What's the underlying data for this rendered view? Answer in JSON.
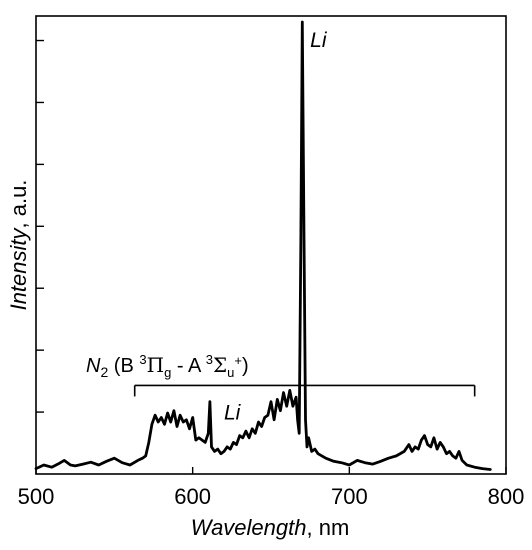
{
  "chart_data": {
    "type": "line",
    "xlabel": "Wavelength",
    "xlabel_unit": ", nm",
    "ylabel": "Intensity",
    "ylabel_unit": ", a.u.",
    "xlim": [
      500,
      800
    ],
    "ylim": [
      0,
      1.0
    ],
    "x_ticks": [
      500,
      600,
      700,
      800
    ],
    "x_tick_labels": [
      "500",
      "600",
      "700",
      "800"
    ],
    "y_ticks": [
      0.137,
      0.274,
      0.411,
      0.548,
      0.685,
      0.822,
      0.959
    ],
    "grid": false,
    "legend": "none",
    "series": [
      {
        "x": [
          500,
          505,
          510,
          515,
          518,
          522,
          525,
          530,
          535,
          540,
          545,
          550,
          555,
          560,
          565,
          568,
          570,
          572,
          574,
          576,
          578,
          580,
          582,
          584,
          586,
          588,
          590,
          592,
          594,
          596,
          598,
          600,
          602,
          604,
          606,
          608,
          610,
          611,
          612,
          614,
          616,
          618,
          620,
          622,
          624,
          626,
          628,
          630,
          632,
          634,
          636,
          638,
          640,
          642,
          644,
          646,
          648,
          650,
          652,
          654,
          656,
          658,
          660,
          662,
          664,
          666,
          667,
          668,
          669,
          670,
          671,
          672,
          673,
          674,
          676,
          678,
          680,
          685,
          690,
          695,
          700,
          705,
          710,
          715,
          720,
          725,
          730,
          735,
          738,
          740,
          742,
          744,
          746,
          748,
          750,
          752,
          754,
          756,
          758,
          760,
          762,
          764,
          766,
          768,
          770,
          772,
          775,
          780,
          785,
          790
        ],
        "y": [
          0.012,
          0.02,
          0.015,
          0.024,
          0.03,
          0.02,
          0.018,
          0.022,
          0.026,
          0.02,
          0.028,
          0.035,
          0.025,
          0.02,
          0.03,
          0.035,
          0.04,
          0.07,
          0.11,
          0.13,
          0.115,
          0.125,
          0.11,
          0.135,
          0.115,
          0.14,
          0.105,
          0.13,
          0.115,
          0.12,
          0.1,
          0.125,
          0.075,
          0.08,
          0.075,
          0.07,
          0.09,
          0.16,
          0.06,
          0.05,
          0.055,
          0.045,
          0.05,
          0.06,
          0.055,
          0.07,
          0.065,
          0.085,
          0.08,
          0.095,
          0.08,
          0.1,
          0.09,
          0.115,
          0.105,
          0.125,
          0.13,
          0.16,
          0.12,
          0.165,
          0.14,
          0.18,
          0.15,
          0.185,
          0.15,
          0.17,
          0.12,
          0.09,
          0.5,
          1.0,
          0.55,
          0.12,
          0.06,
          0.08,
          0.05,
          0.055,
          0.045,
          0.035,
          0.028,
          0.025,
          0.02,
          0.03,
          0.025,
          0.022,
          0.028,
          0.035,
          0.04,
          0.05,
          0.065,
          0.05,
          0.06,
          0.055,
          0.075,
          0.085,
          0.065,
          0.06,
          0.08,
          0.055,
          0.07,
          0.06,
          0.045,
          0.05,
          0.04,
          0.035,
          0.05,
          0.03,
          0.02,
          0.015,
          0.012,
          0.01
        ]
      }
    ],
    "annotations": [
      {
        "text": "Li",
        "x": 675,
        "y": 0.985
      },
      {
        "text": "Li",
        "x": 620,
        "y": 0.16
      }
    ],
    "band": {
      "x_start": 563,
      "x_end": 780,
      "y": 0.196,
      "label": {
        "molecule": "N",
        "molecule_sub": "2",
        "open": " (B ",
        "sup1": "3",
        "state1": "Π",
        "sub1": "g",
        "mid": " - A ",
        "sup2": "3",
        "state2": "Σ",
        "sub2": "u",
        "sup3": "+",
        "close": ")"
      }
    }
  }
}
